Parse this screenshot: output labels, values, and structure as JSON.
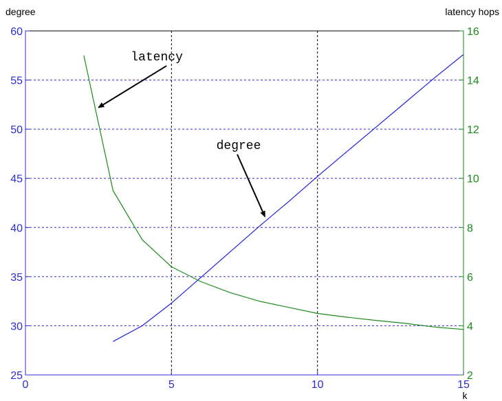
{
  "chart_data": {
    "type": "line",
    "left_axis_title": "degree",
    "right_axis_title": "latency hops",
    "xlabel": "k",
    "xlim": [
      0,
      15
    ],
    "ylim_left": [
      25,
      60
    ],
    "ylim_right": [
      2,
      16
    ],
    "xticks": [
      "0",
      "5",
      "10",
      "15"
    ],
    "yticks_left": [
      "25",
      "30",
      "35",
      "40",
      "45",
      "50",
      "55",
      "60"
    ],
    "yticks_right": [
      "2",
      "4",
      "6",
      "8",
      "10",
      "12",
      "14",
      "16"
    ],
    "x_tick_values": [
      0,
      5,
      10,
      15
    ],
    "y_tick_values_left": [
      25,
      30,
      35,
      40,
      45,
      50,
      55,
      60
    ],
    "y_tick_values_right": [
      2,
      4,
      6,
      8,
      10,
      12,
      14,
      16
    ],
    "vertical_grid_x": [
      5,
      10
    ],
    "horizontal_grid_left_y": [
      30,
      35,
      40,
      45,
      50,
      55
    ],
    "series": [
      {
        "name": "degree",
        "axis": "left",
        "color": "#2020e0",
        "x": [
          3,
          4,
          5,
          6,
          7,
          8,
          9,
          10,
          11,
          12,
          13,
          14,
          15
        ],
        "y": [
          28.4,
          30.0,
          32.3,
          34.9,
          37.5,
          40.1,
          42.6,
          45.2,
          47.7,
          50.2,
          52.7,
          55.2,
          57.6
        ]
      },
      {
        "name": "latency",
        "axis": "right",
        "color": "#1a8a1a",
        "x": [
          2,
          3,
          4,
          5,
          6,
          7,
          8,
          9,
          10,
          11,
          12,
          13,
          14,
          15
        ],
        "y": [
          15.0,
          9.5,
          7.5,
          6.4,
          5.8,
          5.35,
          5.0,
          4.75,
          4.5,
          4.35,
          4.22,
          4.1,
          3.95,
          3.85
        ]
      }
    ],
    "annotations": [
      {
        "text": "latency",
        "x": 4.5,
        "y_left": 57.0,
        "arrow_to": [
          2.5,
          52.2
        ]
      },
      {
        "text": "degree",
        "x": 7.3,
        "y_left": 48.0,
        "arrow_to": [
          8.2,
          41.1
        ]
      }
    ]
  }
}
